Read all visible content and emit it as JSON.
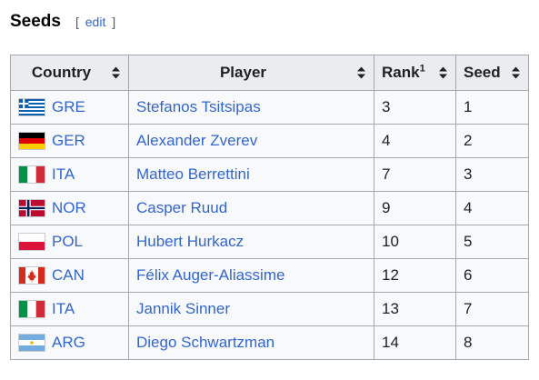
{
  "section": {
    "title": "Seeds",
    "edit_open": "[",
    "edit_label": "edit",
    "edit_close": "]"
  },
  "table": {
    "headers": {
      "country": "Country",
      "player": "Player",
      "rank": "Rank",
      "rank_note": "1",
      "seed": "Seed"
    },
    "rows": [
      {
        "flag": "greece-flag-icon",
        "country": "GRE",
        "player": "Stefanos Tsitsipas",
        "rank": "3",
        "seed": "1"
      },
      {
        "flag": "germany-flag-icon",
        "country": "GER",
        "player": "Alexander Zverev",
        "rank": "4",
        "seed": "2"
      },
      {
        "flag": "italy-flag-icon",
        "country": "ITA",
        "player": "Matteo Berrettini",
        "rank": "7",
        "seed": "3"
      },
      {
        "flag": "norway-flag-icon",
        "country": "NOR",
        "player": "Casper Ruud",
        "rank": "9",
        "seed": "4"
      },
      {
        "flag": "poland-flag-icon",
        "country": "POL",
        "player": "Hubert Hurkacz",
        "rank": "10",
        "seed": "5"
      },
      {
        "flag": "canada-flag-icon",
        "country": "CAN",
        "player": "Félix Auger-Aliassime",
        "rank": "12",
        "seed": "6"
      },
      {
        "flag": "italy-flag-icon",
        "country": "ITA",
        "player": "Jannik Sinner",
        "rank": "13",
        "seed": "7"
      },
      {
        "flag": "argentina-flag-icon",
        "country": "ARG",
        "player": "Diego Schwartzman",
        "rank": "14",
        "seed": "8"
      }
    ]
  },
  "colors": {
    "link": "#3366cc",
    "header_bg": "#eaecf0",
    "cell_bg": "#f8f9fa",
    "border": "#a2a9b1"
  }
}
